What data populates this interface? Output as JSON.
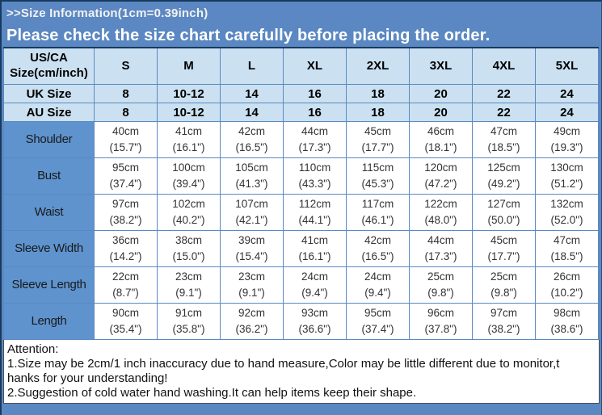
{
  "banner": {
    "title": ">>Size Information(1cm=0.39inch)",
    "subtitle": "Please check the size chart carefully before placing the order."
  },
  "colors": {
    "banner_blue": "#5b88c2",
    "header_light_blue": "#cbe1f1",
    "row_label_blue": "#5e93ce",
    "dark_edge_navy": "#17395f",
    "cell_border_blue": "#5b88c2",
    "attention_border_gray": "#4d4d4d"
  },
  "size_table": {
    "corner_label": "US/CA Size(cm/inch)",
    "sizes": [
      "S",
      "M",
      "L",
      "XL",
      "2XL",
      "3XL",
      "4XL",
      "5XL"
    ],
    "uk_label": "UK Size",
    "uk_values": [
      "8",
      "10-12",
      "14",
      "16",
      "18",
      "20",
      "22",
      "24"
    ],
    "au_label": "AU Size",
    "au_values": [
      "8",
      "10-12",
      "14",
      "16",
      "18",
      "20",
      "22",
      "24"
    ],
    "rows": [
      {
        "label": "Shoulder",
        "cm": [
          "40cm",
          "41cm",
          "42cm",
          "44cm",
          "45cm",
          "46cm",
          "47cm",
          "49cm"
        ],
        "inch": [
          "(15.7\")",
          "(16.1\")",
          "(16.5\")",
          "(17.3\")",
          "(17.7\")",
          "(18.1\")",
          "(18.5\")",
          "(19.3\")"
        ]
      },
      {
        "label": "Bust",
        "cm": [
          "95cm",
          "100cm",
          "105cm",
          "110cm",
          "115cm",
          "120cm",
          "125cm",
          "130cm"
        ],
        "inch": [
          "(37.4\")",
          "(39.4\")",
          "(41.3\")",
          "(43.3\")",
          "(45.3\")",
          "(47.2\")",
          "(49.2\")",
          "(51.2\")"
        ]
      },
      {
        "label": "Waist",
        "cm": [
          "97cm",
          "102cm",
          "107cm",
          "112cm",
          "117cm",
          "122cm",
          "127cm",
          "132cm"
        ],
        "inch": [
          "(38.2\")",
          "(40.2\")",
          "(42.1\")",
          "(44.1\")",
          "(46.1\")",
          "(48.0\")",
          "(50.0\")",
          "(52.0\")"
        ]
      },
      {
        "label": "Sleeve Width",
        "cm": [
          "36cm",
          "38cm",
          "39cm",
          "41cm",
          "42cm",
          "44cm",
          "45cm",
          "47cm"
        ],
        "inch": [
          "(14.2\")",
          "(15.0\")",
          "(15.4\")",
          "(16.1\")",
          "(16.5\")",
          "(17.3\")",
          "(17.7\")",
          "(18.5\")"
        ]
      },
      {
        "label": "Sleeve Length",
        "cm": [
          "22cm",
          "23cm",
          "23cm",
          "24cm",
          "24cm",
          "25cm",
          "25cm",
          "26cm"
        ],
        "inch": [
          "(8.7\")",
          "(9.1\")",
          "(9.1\")",
          "(9.4\")",
          "(9.4\")",
          "(9.8\")",
          "(9.8\")",
          "(10.2\")"
        ]
      },
      {
        "label": "Length",
        "cm": [
          "90cm",
          "91cm",
          "92cm",
          "93cm",
          "95cm",
          "96cm",
          "97cm",
          "98cm"
        ],
        "inch": [
          "(35.4\")",
          "(35.8\")",
          "(36.2\")",
          "(36.6\")",
          "(37.4\")",
          "(37.8\")",
          "(38.2\")",
          "(38.6\")"
        ]
      }
    ]
  },
  "attention": {
    "title": "Attention:",
    "lines": [
      "1.Size may be 2cm/1 inch inaccuracy due to hand measure,Color may be little different due to monitor,t",
      "hanks for your understanding!",
      "2.Suggestion of cold water hand washing.It can help items keep their shape."
    ]
  }
}
